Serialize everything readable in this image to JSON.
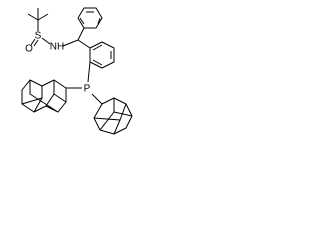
{
  "atoms": [
    "S",
    "O",
    "NH",
    "P"
  ]
}
